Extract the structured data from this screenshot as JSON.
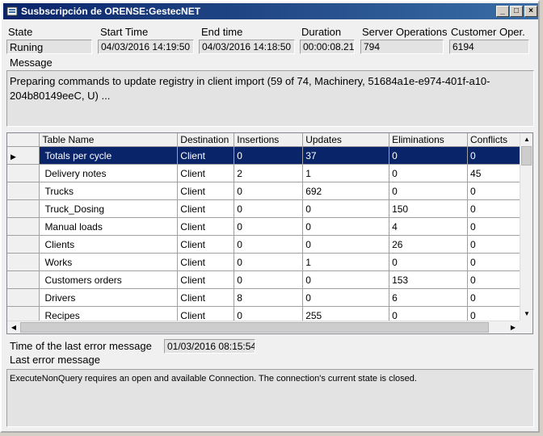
{
  "window": {
    "title": "Susbscripción de ORENSE:GestecNET",
    "buttons": {
      "minimize": "_",
      "maximize": "□",
      "close": "×"
    }
  },
  "status": {
    "state_label": "State",
    "state_value": "Runing",
    "start_label": "Start Time",
    "start_value": "04/03/2016 14:19:50",
    "end_label": "End time",
    "end_value": "04/03/2016 14:18:50",
    "duration_label": "Duration",
    "duration_value": "00:00:08.21",
    "server_ops_label": "Server Operations",
    "server_ops_value": "794",
    "customer_ops_label": "Customer Oper.",
    "customer_ops_value": "6194"
  },
  "message": {
    "label": "Message",
    "text": "Preparing commands to update registry in client import (59 of 74, Machinery, 51684a1e-e974-401f-a10-204b80149eeC, U) ..."
  },
  "grid": {
    "columns": [
      "Table Name",
      "Destination",
      "Insertions",
      "Updates",
      "Eliminations",
      "Conflicts"
    ],
    "rows": [
      {
        "name": "Totals per cycle",
        "dest": "Client",
        "ins": "0",
        "upd": "37",
        "elim": "0",
        "conf": "0"
      },
      {
        "name": "Delivery notes",
        "dest": "Client",
        "ins": "2",
        "upd": "1",
        "elim": "0",
        "conf": "45"
      },
      {
        "name": "Trucks",
        "dest": "Client",
        "ins": "0",
        "upd": "692",
        "elim": "0",
        "conf": "0"
      },
      {
        "name": "Truck_Dosing",
        "dest": "Client",
        "ins": "0",
        "upd": "0",
        "elim": "150",
        "conf": "0"
      },
      {
        "name": "Manual loads",
        "dest": "Client",
        "ins": "0",
        "upd": "0",
        "elim": "4",
        "conf": "0"
      },
      {
        "name": "Clients",
        "dest": "Client",
        "ins": "0",
        "upd": "0",
        "elim": "26",
        "conf": "0"
      },
      {
        "name": "Works",
        "dest": "Client",
        "ins": "0",
        "upd": "1",
        "elim": "0",
        "conf": "0"
      },
      {
        "name": "Customers orders",
        "dest": "Client",
        "ins": "0",
        "upd": "0",
        "elim": "153",
        "conf": "0"
      },
      {
        "name": "Drivers",
        "dest": "Client",
        "ins": "8",
        "upd": "0",
        "elim": "6",
        "conf": "0"
      },
      {
        "name": "Recipes",
        "dest": "Client",
        "ins": "0",
        "upd": "255",
        "elim": "0",
        "conf": "0"
      }
    ],
    "selected_row": 0,
    "selector_glyph": "▶",
    "scroll": {
      "up": "▲",
      "down": "▼",
      "left": "◀",
      "right": "▶"
    }
  },
  "error": {
    "time_label": "Time of the last error message",
    "time_value": "01/03/2016 08:15:54",
    "msg_label": "Last error message",
    "msg_text": "ExecuteNonQuery requires an open and available Connection. The connection's current state is closed."
  },
  "colors": {
    "titlebar": "#0a246a",
    "selection": "#0a246a",
    "background": "#f0f0f0"
  },
  "icons": {
    "window": "app-icon"
  }
}
